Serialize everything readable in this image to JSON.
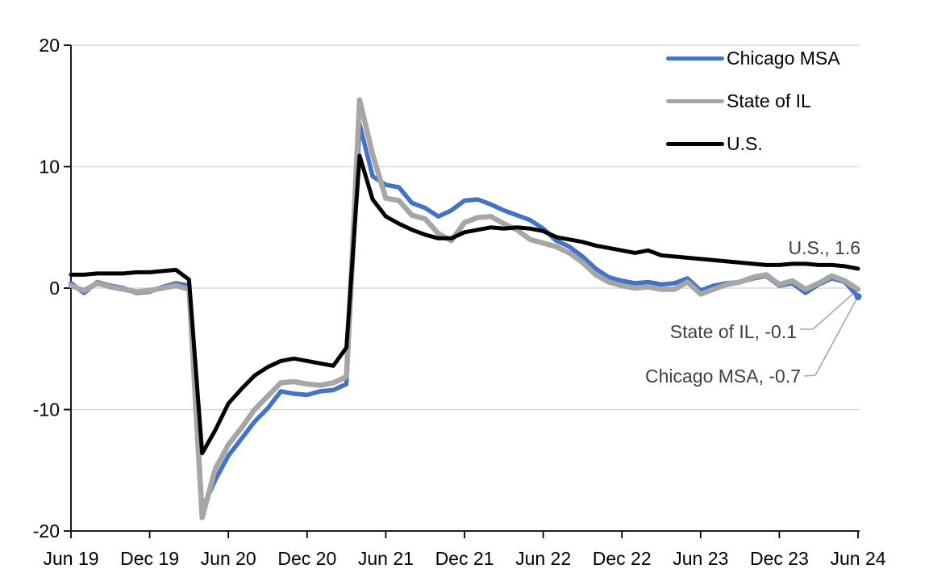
{
  "chart_data": {
    "type": "line",
    "title": "",
    "xlabel": "",
    "ylabel": "",
    "ylim": [
      -20,
      20
    ],
    "y_ticks": [
      20,
      10,
      0,
      -10,
      -20
    ],
    "x_tick_labels": [
      "Jun 19",
      "Dec 19",
      "Jun 20",
      "Dec 20",
      "Jun 21",
      "Dec 21",
      "Jun 22",
      "Dec 22",
      "Jun 23",
      "Dec 23",
      "Jun 24"
    ],
    "grid": "horizontal",
    "grid_color": "#D9D9D9",
    "axis_color": "#000000",
    "annotation_color": "#404040",
    "leader_color": "#A6A6A6",
    "legend_position": "top-right",
    "x": [
      "Jun 2019",
      "Jul 2019",
      "Aug 2019",
      "Sep 2019",
      "Oct 2019",
      "Nov 2019",
      "Dec 2019",
      "Jan 2020",
      "Feb 2020",
      "Mar 2020",
      "Apr 2020",
      "May 2020",
      "Jun 2020",
      "Jul 2020",
      "Aug 2020",
      "Sep 2020",
      "Oct 2020",
      "Nov 2020",
      "Dec 2020",
      "Jan 2021",
      "Feb 2021",
      "Mar 2021",
      "Apr 2021",
      "May 2021",
      "Jun 2021",
      "Jul 2021",
      "Aug 2021",
      "Sep 2021",
      "Oct 2021",
      "Nov 2021",
      "Dec 2021",
      "Jan 2022",
      "Feb 2022",
      "Mar 2022",
      "Apr 2022",
      "May 2022",
      "Jun 2022",
      "Jul 2022",
      "Aug 2022",
      "Sep 2022",
      "Oct 2022",
      "Nov 2022",
      "Dec 2022",
      "Jan 2023",
      "Feb 2023",
      "Mar 2023",
      "Apr 2023",
      "May 2023",
      "Jun 2023",
      "Jul 2023",
      "Aug 2023",
      "Sep 2023",
      "Oct 2023",
      "Nov 2023",
      "Dec 2023",
      "Jan 2024",
      "Feb 2024",
      "Mar 2024",
      "Apr 2024",
      "May 2024",
      "Jun 2024"
    ],
    "series": [
      {
        "name": "Chicago MSA",
        "color": "#4472C4",
        "stroke_width": 5.5,
        "end_value": -0.7,
        "values": [
          0.4,
          -0.4,
          0.5,
          0.2,
          0.0,
          -0.4,
          -0.3,
          0.1,
          0.4,
          0.2,
          -18.2,
          -15.8,
          -13.8,
          -12.4,
          -11.0,
          -9.9,
          -8.5,
          -8.7,
          -8.8,
          -8.5,
          -8.4,
          -7.9,
          13.5,
          9.2,
          8.5,
          8.3,
          7.0,
          6.6,
          5.9,
          6.4,
          7.2,
          7.3,
          6.9,
          6.4,
          6.0,
          5.6,
          4.9,
          3.9,
          3.4,
          2.6,
          1.6,
          0.9,
          0.6,
          0.4,
          0.5,
          0.3,
          0.4,
          0.8,
          -0.2,
          0.2,
          0.4,
          0.5,
          0.8,
          1.0,
          0.2,
          0.4,
          -0.4,
          0.3,
          0.8,
          0.5,
          -0.7
        ]
      },
      {
        "name": "State of IL",
        "color": "#A6A6A6",
        "stroke_width": 6.5,
        "end_value": -0.1,
        "values": [
          0.2,
          -0.2,
          0.4,
          0.1,
          -0.1,
          -0.3,
          -0.2,
          0.0,
          0.2,
          -0.1,
          -18.9,
          -14.9,
          -12.9,
          -11.5,
          -10.0,
          -8.9,
          -7.8,
          -7.7,
          -7.9,
          -8.0,
          -7.8,
          -7.3,
          15.5,
          11.0,
          7.4,
          7.2,
          6.0,
          5.7,
          4.5,
          3.9,
          5.4,
          5.8,
          5.9,
          5.3,
          4.8,
          4.0,
          3.7,
          3.4,
          2.9,
          2.1,
          1.1,
          0.5,
          0.2,
          0.0,
          0.1,
          -0.1,
          -0.1,
          0.5,
          -0.5,
          -0.1,
          0.3,
          0.5,
          0.9,
          1.1,
          0.3,
          0.6,
          -0.1,
          0.4,
          1.0,
          0.6,
          -0.1
        ]
      },
      {
        "name": "U.S.",
        "color": "#000000",
        "stroke_width": 5,
        "end_value": 1.6,
        "values": [
          1.1,
          1.1,
          1.2,
          1.2,
          1.2,
          1.3,
          1.3,
          1.4,
          1.5,
          0.7,
          -13.6,
          -11.7,
          -9.5,
          -8.3,
          -7.2,
          -6.5,
          -6.0,
          -5.8,
          -6.0,
          -6.2,
          -6.4,
          -4.9,
          10.9,
          7.3,
          5.9,
          5.3,
          4.8,
          4.4,
          4.1,
          4.1,
          4.6,
          4.8,
          5.0,
          4.9,
          5.0,
          4.9,
          4.7,
          4.2,
          4.0,
          3.8,
          3.5,
          3.3,
          3.1,
          2.9,
          3.1,
          2.7,
          2.6,
          2.5,
          2.4,
          2.3,
          2.2,
          2.1,
          2.0,
          1.9,
          1.9,
          2.0,
          2.0,
          1.9,
          1.9,
          1.8,
          1.6
        ]
      }
    ],
    "annotations": [
      {
        "text": "U.S., 1.6"
      },
      {
        "text": "State of IL, -0.1"
      },
      {
        "text": "Chicago MSA, -0.7"
      }
    ]
  }
}
